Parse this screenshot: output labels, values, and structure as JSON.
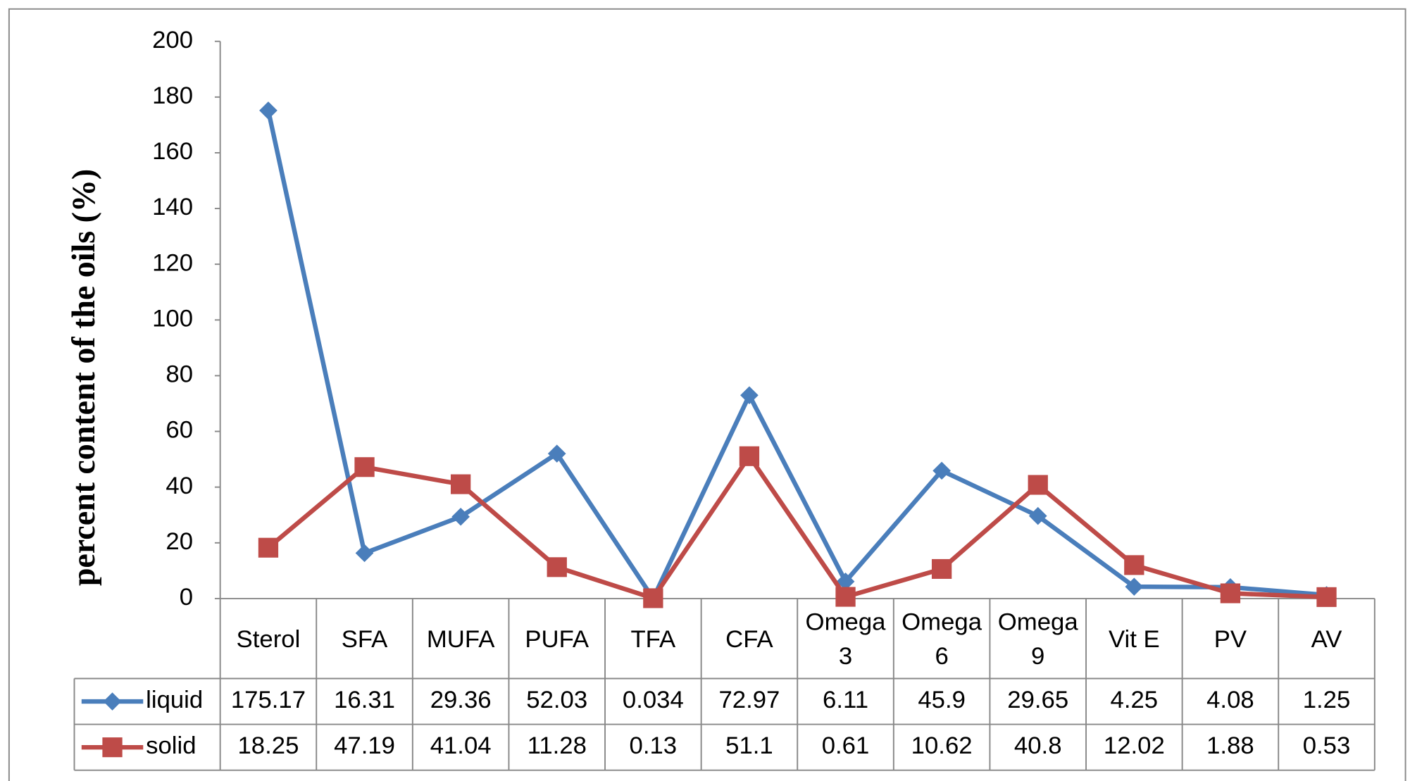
{
  "chart_data": {
    "type": "line",
    "y_label": "percent content of the oils (%)",
    "categories": [
      "Sterol",
      "SFA",
      "MUFA",
      "PUFA",
      "TFA",
      "CFA",
      "Omega 3",
      "Omega 6",
      "Omega 9",
      "Vit E",
      "PV",
      "AV"
    ],
    "series": [
      {
        "name": "liquid",
        "color": "#4a7ebb",
        "marker": "diamond",
        "values": [
          175.17,
          16.31,
          29.36,
          52.03,
          0.034,
          72.97,
          6.11,
          45.9,
          29.65,
          4.25,
          4.08,
          1.25
        ]
      },
      {
        "name": "solid",
        "color": "#be4b48",
        "marker": "square",
        "values": [
          18.25,
          47.19,
          41.04,
          11.28,
          0.13,
          51.1,
          0.61,
          10.62,
          40.8,
          12.02,
          1.88,
          0.53
        ]
      }
    ],
    "ylim": [
      0,
      200
    ],
    "yticks": [
      0,
      20,
      40,
      60,
      80,
      100,
      120,
      140,
      160,
      180,
      200
    ],
    "grid": false
  }
}
